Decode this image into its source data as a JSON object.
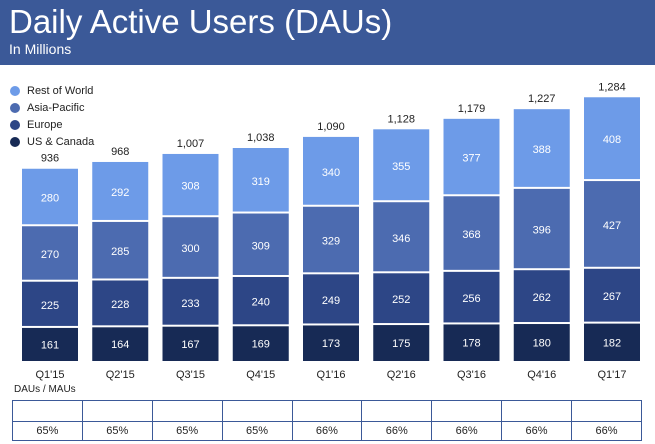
{
  "header": {
    "title": "Daily Active Users (DAUs)",
    "subtitle": "In Millions"
  },
  "ratio_row": {
    "label": "DAUs / MAUs",
    "values": [
      "65%",
      "65%",
      "65%",
      "65%",
      "66%",
      "66%",
      "66%",
      "66%",
      "66%"
    ]
  },
  "colors": {
    "header_bg": "#3b5998",
    "rest_of_world": "#6d9be8",
    "asia_pacific": "#4c6bb0",
    "europe": "#2d4686",
    "us_canada": "#172a55"
  },
  "chart_data": {
    "type": "bar",
    "stacked": true,
    "title": "Daily Active Users (DAUs)",
    "subtitle": "In Millions",
    "categories": [
      "Q1'15",
      "Q2'15",
      "Q3'15",
      "Q4'15",
      "Q1'16",
      "Q2'16",
      "Q3'16",
      "Q4'16",
      "Q1'17"
    ],
    "totals": [
      "936",
      "968",
      "1,007",
      "1,038",
      "1,090",
      "1,128",
      "1,179",
      "1,227",
      "1,284"
    ],
    "series": [
      {
        "name": "US & Canada",
        "color": "#172a55",
        "values": [
          161,
          164,
          167,
          169,
          173,
          175,
          178,
          180,
          182
        ]
      },
      {
        "name": "Europe",
        "color": "#2d4686",
        "values": [
          225,
          228,
          233,
          240,
          249,
          252,
          256,
          262,
          267
        ]
      },
      {
        "name": "Asia-Pacific",
        "color": "#4c6bb0",
        "values": [
          270,
          285,
          300,
          309,
          329,
          346,
          368,
          396,
          427
        ]
      },
      {
        "name": "Rest of World",
        "color": "#6d9be8",
        "values": [
          280,
          292,
          308,
          319,
          340,
          355,
          377,
          388,
          408
        ]
      }
    ],
    "legend_position": "top-left",
    "grid": false
  }
}
